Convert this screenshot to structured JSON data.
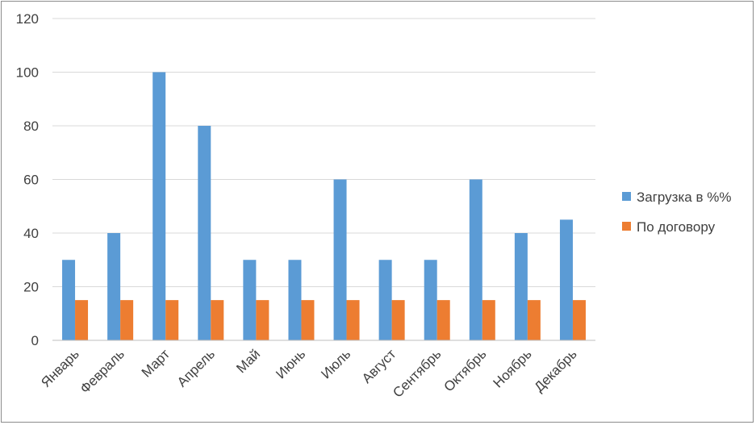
{
  "chart_data": {
    "type": "bar",
    "categories": [
      "Январь",
      "Февраль",
      "Март",
      "Апрель",
      "Май",
      "Июнь",
      "Июль",
      "Август",
      "Сентябрь",
      "Октябрь",
      "Ноябрь",
      "Декабрь"
    ],
    "series": [
      {
        "name": "Загрузка в %%",
        "color": "#5b9bd5",
        "values": [
          30,
          40,
          100,
          80,
          30,
          30,
          60,
          30,
          30,
          60,
          40,
          45
        ]
      },
      {
        "name": "По договору",
        "color": "#ed7d31",
        "values": [
          15,
          15,
          15,
          15,
          15,
          15,
          15,
          15,
          15,
          15,
          15,
          15
        ]
      }
    ],
    "yticks": [
      "0",
      "20",
      "40",
      "60",
      "80",
      "100",
      "120"
    ],
    "ylim": [
      0,
      120
    ],
    "grid": true,
    "legend_position": "right"
  }
}
